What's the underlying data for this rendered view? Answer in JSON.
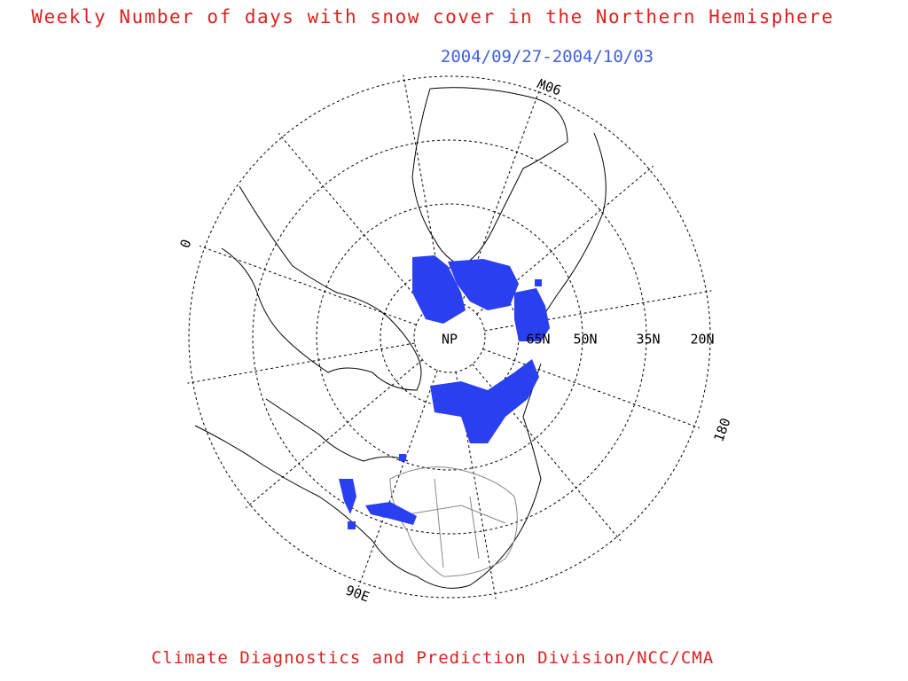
{
  "title": "Weekly Number of days with snow cover in the Northern Hemisphere",
  "period": "2004/09/27-2004/10/03",
  "pole_label": "NP",
  "latitude_labels": [
    "65N",
    "50N",
    "35N",
    "20N"
  ],
  "longitude_labels": [
    "0",
    "90W",
    "180",
    "90E"
  ],
  "credit": "Climate Diagnostics and Prediction Division/NCC/CMA"
}
